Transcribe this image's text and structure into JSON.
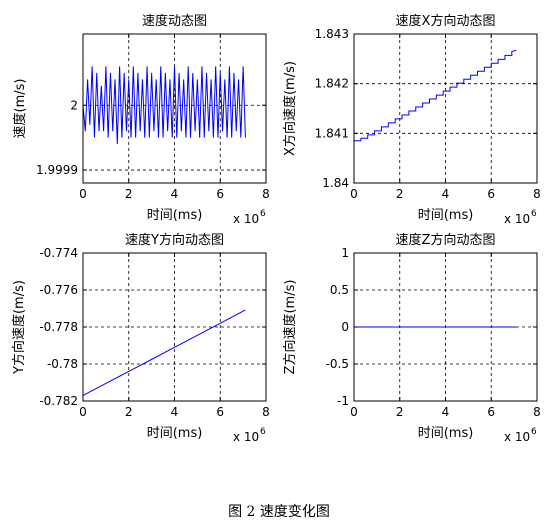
{
  "figure_caption": "图 2  速度变化图",
  "chart_data": [
    {
      "type": "line",
      "title": "速度动态图",
      "xlabel": "时间(ms)",
      "ylabel": "速度(m/s)",
      "x_exponent_label": "x 10",
      "x_exponent_power": "6",
      "xlim": [
        0,
        8
      ],
      "ylim": [
        1.99988,
        2.00011
      ],
      "xticks": [
        0,
        2,
        4,
        6,
        8
      ],
      "xtick_labels": [
        "0",
        "2",
        "4",
        "6",
        "8"
      ],
      "yticks": [
        1.9999,
        2.0
      ],
      "ytick_labels": [
        "1.9999",
        "2"
      ],
      "grid": true,
      "color": "#0000ff",
      "series": [
        {
          "x": [
            0.0,
            0.1,
            0.2,
            0.3,
            0.4,
            0.5,
            0.6,
            0.7,
            0.8,
            0.9,
            1.0,
            1.1,
            1.2,
            1.3,
            1.4,
            1.5,
            1.6,
            1.7,
            1.8,
            1.9,
            2.0,
            2.1,
            2.2,
            2.3,
            2.4,
            2.5,
            2.6,
            2.7,
            2.8,
            2.9,
            3.0,
            3.1,
            3.2,
            3.3,
            3.4,
            3.5,
            3.6,
            3.7,
            3.8,
            3.9,
            4.0,
            4.1,
            4.2,
            4.3,
            4.4,
            4.5,
            4.6,
            4.7,
            4.8,
            4.9,
            5.0,
            5.1,
            5.2,
            5.3,
            5.4,
            5.5,
            5.6,
            5.7,
            5.8,
            5.9,
            6.0,
            6.1,
            6.2,
            6.3,
            6.4,
            6.5,
            6.6,
            6.7,
            6.8,
            6.9,
            7.0,
            7.1
          ],
          "y": [
            2.0,
            1.99996,
            2.00004,
            1.99997,
            2.00006,
            1.99995,
            2.00005,
            1.99996,
            2.00003,
            1.99996,
            2.00006,
            1.99995,
            2.00005,
            1.99996,
            2.00004,
            1.99994,
            2.00006,
            1.99995,
            2.00005,
            1.99996,
            2.00004,
            1.99995,
            2.00006,
            1.99995,
            2.00005,
            1.99996,
            2.00004,
            1.99995,
            2.00006,
            1.99995,
            2.00005,
            1.99996,
            2.00004,
            1.99995,
            2.00006,
            1.99995,
            2.00005,
            1.99996,
            2.00004,
            1.99995,
            2.00006,
            1.99995,
            2.00005,
            1.99996,
            2.00004,
            1.99995,
            2.00006,
            1.99995,
            2.00005,
            1.99996,
            2.00004,
            1.99995,
            2.00006,
            1.99995,
            2.00005,
            1.99996,
            2.00004,
            1.99995,
            2.00006,
            1.99995,
            2.00005,
            1.99996,
            2.00004,
            1.99995,
            2.00006,
            1.99995,
            2.00005,
            1.99996,
            2.00004,
            1.99995,
            2.00006,
            1.99995
          ]
        }
      ]
    },
    {
      "type": "line",
      "title": "速度X方向动态图",
      "xlabel": "时间(ms)",
      "ylabel": "X方向速度(m/s)",
      "x_exponent_label": "x 10",
      "x_exponent_power": "6",
      "xlim": [
        0,
        8
      ],
      "ylim": [
        1.84,
        1.843
      ],
      "xticks": [
        0,
        2,
        4,
        6,
        8
      ],
      "xtick_labels": [
        "0",
        "2",
        "4",
        "6",
        "8"
      ],
      "yticks": [
        1.84,
        1.841,
        1.842,
        1.843
      ],
      "ytick_labels": [
        "1.84",
        "1.841",
        "1.842",
        "1.843"
      ],
      "grid": true,
      "color": "#0000ff",
      "series": [
        {
          "x": [
            0.0,
            0.3,
            0.3,
            0.6,
            0.6,
            0.9,
            0.9,
            1.2,
            1.2,
            1.5,
            1.5,
            1.8,
            1.8,
            2.1,
            2.1,
            2.4,
            2.4,
            2.7,
            2.7,
            3.0,
            3.0,
            3.3,
            3.3,
            3.6,
            3.6,
            3.9,
            3.9,
            4.2,
            4.2,
            4.5,
            4.5,
            4.8,
            4.8,
            5.1,
            5.1,
            5.4,
            5.4,
            5.7,
            5.7,
            6.0,
            6.0,
            6.3,
            6.3,
            6.6,
            6.6,
            6.9,
            6.9,
            7.1
          ],
          "y": [
            1.84085,
            1.84085,
            1.8409,
            1.8409,
            1.84097,
            1.84097,
            1.84105,
            1.84105,
            1.84113,
            1.84113,
            1.84121,
            1.84121,
            1.84129,
            1.84129,
            1.84137,
            1.84137,
            1.84145,
            1.84145,
            1.84153,
            1.84153,
            1.84161,
            1.84161,
            1.84169,
            1.84169,
            1.84177,
            1.84177,
            1.84185,
            1.84185,
            1.84193,
            1.84193,
            1.84201,
            1.84201,
            1.84209,
            1.84209,
            1.84217,
            1.84217,
            1.84225,
            1.84225,
            1.84233,
            1.84233,
            1.84241,
            1.84241,
            1.84249,
            1.84249,
            1.84257,
            1.84257,
            1.84265,
            1.84267
          ]
        }
      ]
    },
    {
      "type": "line",
      "title": "速度Y方向动态图",
      "xlabel": "时间(ms)",
      "ylabel": "Y方向速度(m/s)",
      "x_exponent_label": "x 10",
      "x_exponent_power": "6",
      "xlim": [
        0,
        8
      ],
      "ylim": [
        -0.782,
        -0.774
      ],
      "xticks": [
        0,
        2,
        4,
        6,
        8
      ],
      "xtick_labels": [
        "0",
        "2",
        "4",
        "6",
        "8"
      ],
      "yticks": [
        -0.782,
        -0.78,
        -0.778,
        -0.776,
        -0.774
      ],
      "ytick_labels": [
        "-0.782",
        "-0.78",
        "-0.778",
        "-0.776",
        "-0.774"
      ],
      "grid": true,
      "color": "#0000ff",
      "series": [
        {
          "x": [
            0.0,
            1.0,
            2.0,
            3.0,
            4.0,
            5.0,
            6.0,
            7.1
          ],
          "y": [
            -0.7817,
            -0.78105,
            -0.7804,
            -0.77975,
            -0.7791,
            -0.77845,
            -0.7778,
            -0.77708
          ]
        }
      ]
    },
    {
      "type": "line",
      "title": "速度Z方向动态图",
      "xlabel": "时间(ms)",
      "ylabel": "Z方向速度(m/s)",
      "x_exponent_label": "x 10",
      "x_exponent_power": "6",
      "xlim": [
        0,
        8
      ],
      "ylim": [
        -1,
        1
      ],
      "xticks": [
        0,
        2,
        4,
        6,
        8
      ],
      "xtick_labels": [
        "0",
        "2",
        "4",
        "6",
        "8"
      ],
      "yticks": [
        -1,
        -0.5,
        0,
        0.5,
        1
      ],
      "ytick_labels": [
        "-1",
        "-0.5",
        "0",
        "0.5",
        "1"
      ],
      "grid": true,
      "color": "#0000ff",
      "series": [
        {
          "x": [
            0.0,
            7.1
          ],
          "y": [
            0,
            0
          ]
        }
      ]
    }
  ]
}
